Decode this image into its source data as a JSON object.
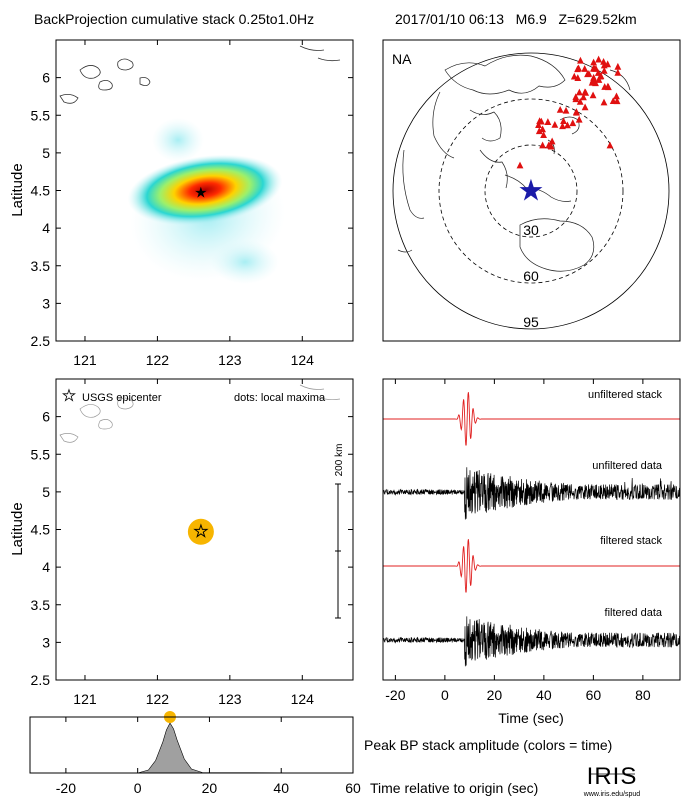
{
  "header": {
    "title": "BackProjection cumulative stack 0.25to1.0Hz",
    "event": "2017/01/10 06:13   M6.9   Z=629.52km"
  },
  "colors": {
    "epicenter_star": "#1a1aa8",
    "stations": "#e01010",
    "maxima": "#f7b500",
    "stack_trace": "#e02020",
    "hot": "#d11000",
    "cyan": "#bff0f5",
    "gray_fill": "#999999"
  },
  "chart_data": [
    {
      "id": "cumulative-stack",
      "type": "heatmap",
      "ylabel": "Latitude",
      "xlim": [
        120.6,
        124.7
      ],
      "ylim": [
        2.5,
        6.5
      ],
      "xticks": [
        "121",
        "122",
        "123",
        "124"
      ],
      "yticks": [
        "2.5",
        "3",
        "3.5",
        "4",
        "4.5",
        "5",
        "5.5",
        "6"
      ],
      "peak": {
        "lon": 122.6,
        "lat": 4.47
      },
      "epicenter": {
        "lon": 122.6,
        "lat": 4.47
      }
    },
    {
      "id": "station-map",
      "type": "scatter",
      "array_label": "NA",
      "distance_rings_deg": [
        "30",
        "60",
        "95"
      ],
      "epicenter_marker": "blue star",
      "station_marker": "red triangle"
    },
    {
      "id": "local-maxima",
      "type": "scatter",
      "ylabel": "Latitude",
      "xlim": [
        120.6,
        124.7
      ],
      "ylim": [
        2.5,
        6.5
      ],
      "xticks": [
        "121",
        "122",
        "123",
        "124"
      ],
      "yticks": [
        "2.5",
        "3",
        "3.5",
        "4",
        "4.5",
        "5",
        "5.5",
        "6"
      ],
      "legend_epicenter": "USGS epicenter",
      "legend_dots": "dots: local maxima",
      "scale_label": "200 km",
      "maxima": [
        {
          "lon": 122.6,
          "lat": 4.47,
          "time": 9
        }
      ]
    },
    {
      "id": "seismograms",
      "type": "line",
      "xlabel": "Time (sec)",
      "xlim": [
        -25,
        95
      ],
      "xticks": [
        "-20",
        "0",
        "20",
        "40",
        "60",
        "80"
      ],
      "traces": [
        "unfiltered stack",
        "unfiltered data",
        "filtered stack",
        "filtered data"
      ],
      "p_arrival_sec": 9
    },
    {
      "id": "peak-amplitude",
      "type": "area",
      "xlabel": "Time relative to origin (sec)",
      "title": "Peak BP stack amplitude (colors = time)",
      "xlim": [
        -30,
        60
      ],
      "xticks": [
        "-20",
        "0",
        "20",
        "40",
        "60"
      ],
      "x": [
        -30,
        0,
        3,
        5,
        7,
        8,
        9,
        10,
        11,
        13,
        15,
        18,
        60
      ],
      "y": [
        0,
        0,
        0.06,
        0.25,
        0.62,
        0.86,
        1.0,
        0.88,
        0.66,
        0.28,
        0.08,
        0.01,
        0
      ],
      "peak_time": 9
    }
  ],
  "footer": {
    "logo_text": "IRIS",
    "logo_url": "www.iris.edu/spud"
  }
}
